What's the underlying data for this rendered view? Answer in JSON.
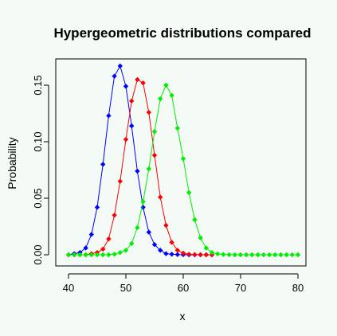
{
  "chart_data": {
    "type": "line",
    "title": "Hypergeometric distributions compared",
    "xlabel": "x",
    "ylabel": "Probability",
    "xlim": [
      40,
      80
    ],
    "ylim": [
      0,
      0.17
    ],
    "grid": false,
    "x_ticks": [
      40,
      50,
      60,
      70,
      80
    ],
    "y_ticks": [
      0.0,
      0.05,
      0.1,
      0.15
    ],
    "x_tick_labels": [
      "40",
      "50",
      "60",
      "70",
      "80"
    ],
    "y_tick_labels": [
      "0.00",
      "0.05",
      "0.10",
      "0.15"
    ],
    "series": [
      {
        "color": "#0000ff",
        "x": [
          40,
          41,
          42,
          43,
          44,
          45,
          46,
          47,
          48,
          49,
          50,
          51,
          52,
          53,
          54,
          55,
          56,
          57,
          58,
          59,
          60,
          61,
          62,
          63,
          64,
          65
        ],
        "values": [
          0.0,
          0.001,
          0.002,
          0.006,
          0.018,
          0.042,
          0.08,
          0.123,
          0.158,
          0.167,
          0.149,
          0.114,
          0.074,
          0.042,
          0.02,
          0.009,
          0.004,
          0.001,
          0.0005,
          0.0002,
          0.0001,
          0.0,
          0.0,
          0.0,
          0.0,
          0.0
        ]
      },
      {
        "color": "#ff0000",
        "x": [
          40,
          41,
          42,
          43,
          44,
          45,
          46,
          47,
          48,
          49,
          50,
          51,
          52,
          53,
          54,
          55,
          56,
          57,
          58,
          59,
          60,
          61,
          62,
          63,
          64,
          65
        ],
        "values": [
          0.0,
          0.0,
          0.0,
          0.0,
          0.001,
          0.002,
          0.005,
          0.014,
          0.035,
          0.065,
          0.102,
          0.136,
          0.155,
          0.152,
          0.126,
          0.088,
          0.051,
          0.026,
          0.011,
          0.004,
          0.0015,
          0.0005,
          0.0002,
          0.0001,
          0.0,
          0.0
        ]
      },
      {
        "color": "#00ee00",
        "x": [
          40,
          41,
          42,
          43,
          44,
          45,
          46,
          47,
          48,
          49,
          50,
          51,
          52,
          53,
          54,
          55,
          56,
          57,
          58,
          59,
          60,
          61,
          62,
          63,
          64,
          65,
          66,
          67,
          68,
          69,
          70,
          71,
          72,
          73,
          74,
          75,
          76,
          77,
          78,
          79,
          80
        ],
        "values": [
          0,
          0,
          0,
          0,
          0,
          0,
          0,
          0,
          0.0005,
          0.002,
          0.004,
          0.01,
          0.024,
          0.047,
          0.076,
          0.109,
          0.138,
          0.15,
          0.141,
          0.112,
          0.085,
          0.055,
          0.031,
          0.015,
          0.006,
          0.002,
          0.0008,
          0.0003,
          0.0001,
          0,
          0,
          0,
          0,
          0,
          0,
          0,
          0,
          0,
          0,
          0,
          0
        ]
      }
    ]
  }
}
